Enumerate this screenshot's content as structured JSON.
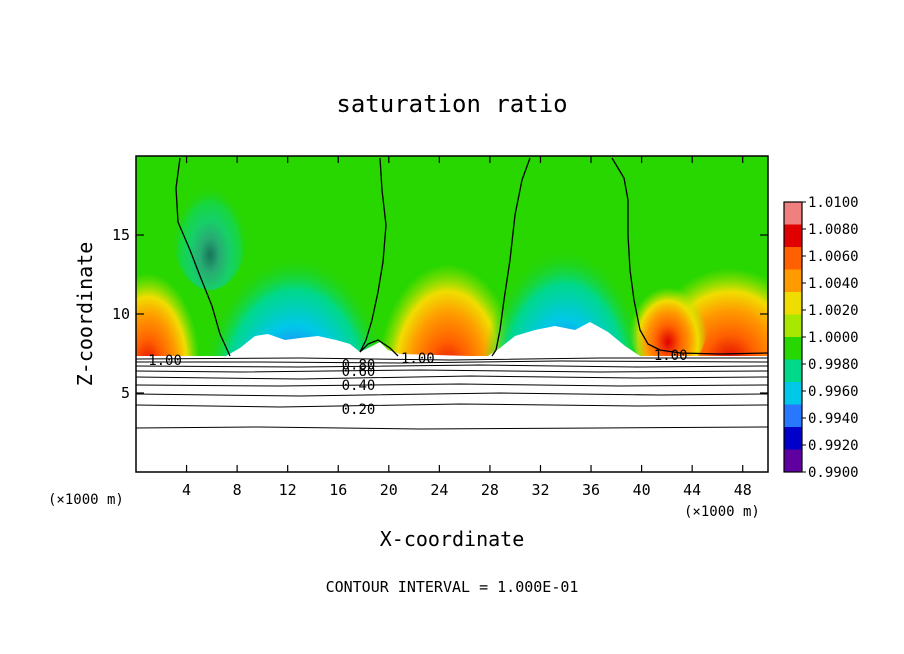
{
  "chart_data": {
    "type": "heatmap",
    "title": "saturation ratio",
    "xlabel": "X-coordinate",
    "ylabel": "Z-coordinate",
    "x_unit_left": "(×1000 m)",
    "x_unit_right": "(×1000 m)",
    "footer": "CONTOUR INTERVAL = 1.000E-01",
    "xlim": [
      0,
      50
    ],
    "ylim": [
      0,
      20
    ],
    "x_ticks": [
      4,
      8,
      12,
      16,
      20,
      24,
      28,
      32,
      36,
      40,
      44,
      48
    ],
    "y_ticks": [
      5,
      10,
      15
    ],
    "colorbar": {
      "levels": [
        "1.0100",
        "1.0080",
        "1.0060",
        "1.0040",
        "1.0020",
        "1.0000",
        "0.9980",
        "0.9960",
        "0.9940",
        "0.9920",
        "0.9900"
      ],
      "colors": [
        "#f08080",
        "#e00000",
        "#ff6000",
        "#ff9a00",
        "#f0dd00",
        "#a8e800",
        "#28d600",
        "#00d88a",
        "#00c8e8",
        "#2878ff",
        "#0000c8",
        "#6000a0"
      ]
    },
    "contour_labels": [
      {
        "text": "1.00",
        "x": 2.3,
        "z": 7.1
      },
      {
        "text": "1.00",
        "x": 22.3,
        "z": 7.2
      },
      {
        "text": "1.00",
        "x": 42.3,
        "z": 7.4
      },
      {
        "text": "0.80",
        "x": 17.6,
        "z": 6.8
      },
      {
        "text": "0.60",
        "x": 17.6,
        "z": 6.4
      },
      {
        "text": "0.40",
        "x": 17.6,
        "z": 5.5
      },
      {
        "text": "0.20",
        "x": 17.6,
        "z": 4.0
      }
    ]
  }
}
